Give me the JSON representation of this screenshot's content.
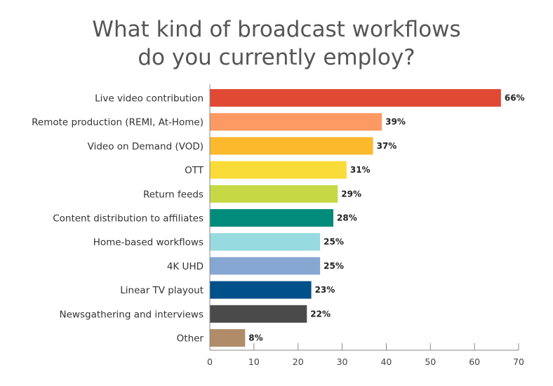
{
  "chart_data": {
    "type": "bar",
    "orientation": "horizontal",
    "title": "What kind of broadcast workflows do you currently employ?",
    "title_lines": [
      "What kind of broadcast workflows",
      "do you currently employ?"
    ],
    "categories": [
      "Live video contribution",
      "Remote production (REMI, At-Home)",
      "Video on Demand (VOD)",
      "OTT",
      "Return feeds",
      "Content distribution to affiliates",
      "Home-based workflows",
      "4K UHD",
      "Linear TV playout",
      "Newsgathering and interviews",
      "Other"
    ],
    "values": [
      66,
      39,
      37,
      31,
      29,
      28,
      25,
      25,
      23,
      22,
      8
    ],
    "data_labels": [
      "66%",
      "39%",
      "37%",
      "31%",
      "29%",
      "28%",
      "25%",
      "25%",
      "23%",
      "22%",
      "8%"
    ],
    "colors": [
      "#e04a34",
      "#fd9a63",
      "#fcb92c",
      "#f9dc38",
      "#c6d945",
      "#008b7b",
      "#97dbe1",
      "#86a7d2",
      "#00508a",
      "#4a4a4a",
      "#b08d68"
    ],
    "xlim": [
      0,
      70
    ],
    "xticks": [
      "0",
      "10",
      "20",
      "30",
      "40",
      "50",
      "60",
      "70"
    ],
    "xlabel": "",
    "ylabel": "",
    "grid": false,
    "legend": "none"
  }
}
